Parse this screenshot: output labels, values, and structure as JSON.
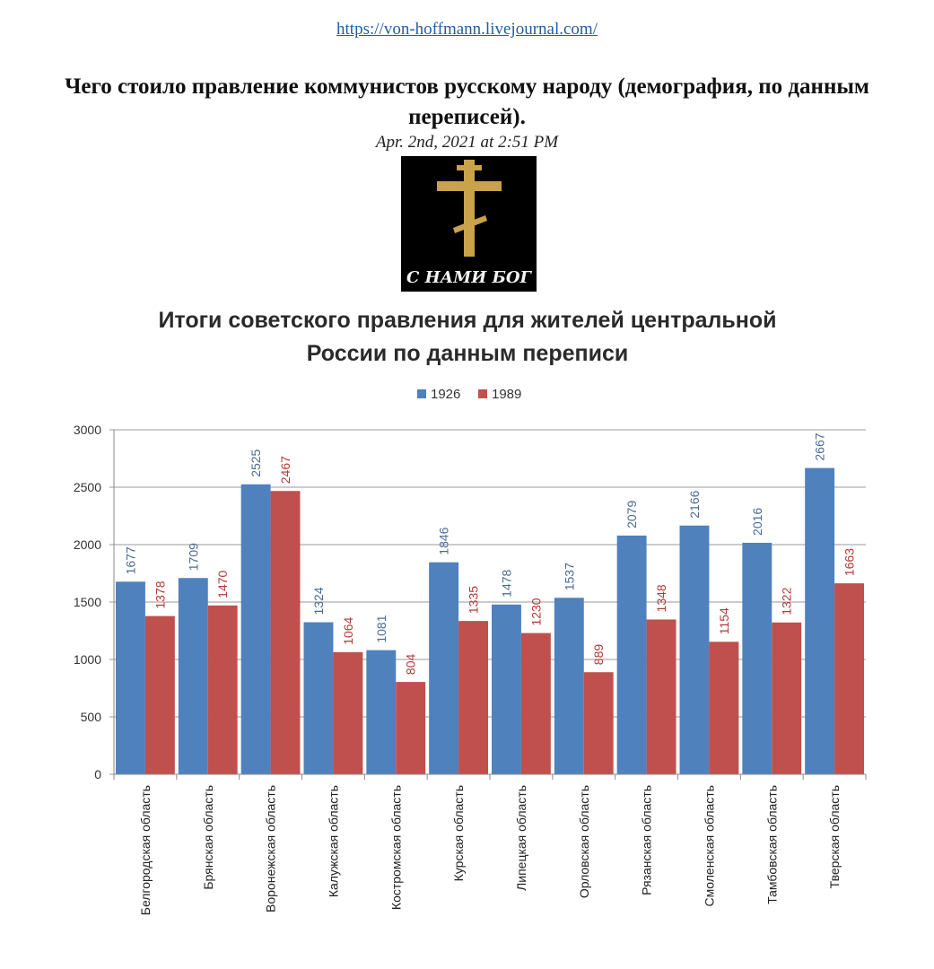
{
  "header": {
    "url": "https://von-hoffmann.livejournal.com/",
    "title": "Чего стоило правление коммунистов русскому народу (демография, по данным переписей).",
    "date": "Apr. 2nd, 2021 at 2:51 PM"
  },
  "image": {
    "caption": "С НАМИ БОГ",
    "icon": "orthodox-cross-icon"
  },
  "colors": {
    "series_1926": "#4f81bd",
    "series_1989": "#c0504d",
    "label_1926": "#4a6b95",
    "label_1989": "#b03a37",
    "grid": "#9a9a9a"
  },
  "chart_data": {
    "type": "bar",
    "title_lines": [
      "Итоги советского правления для жителей центральной",
      "России по данным переписи"
    ],
    "xlabel": "",
    "ylabel": "",
    "ylim": [
      0,
      3000
    ],
    "yticks": [
      0,
      500,
      1000,
      1500,
      2000,
      2500,
      3000
    ],
    "grid": true,
    "legend_position": "top",
    "categories": [
      "Белгородская область",
      "Брянская область",
      "Воронежская область",
      "Калужская область",
      "Костромская область",
      "Курская область",
      "Липецкая область",
      "Орловская область",
      "Рязанская область",
      "Смоленская область",
      "Тамбовская область",
      "Тверская область"
    ],
    "series": [
      {
        "name": "1926",
        "values": [
          1677,
          1709,
          2525,
          1324,
          1081,
          1846,
          1478,
          1537,
          2079,
          2166,
          2016,
          2667
        ]
      },
      {
        "name": "1989",
        "values": [
          1378,
          1470,
          2467,
          1064,
          804,
          1335,
          1230,
          889,
          1348,
          1154,
          1322,
          1663
        ]
      }
    ]
  }
}
